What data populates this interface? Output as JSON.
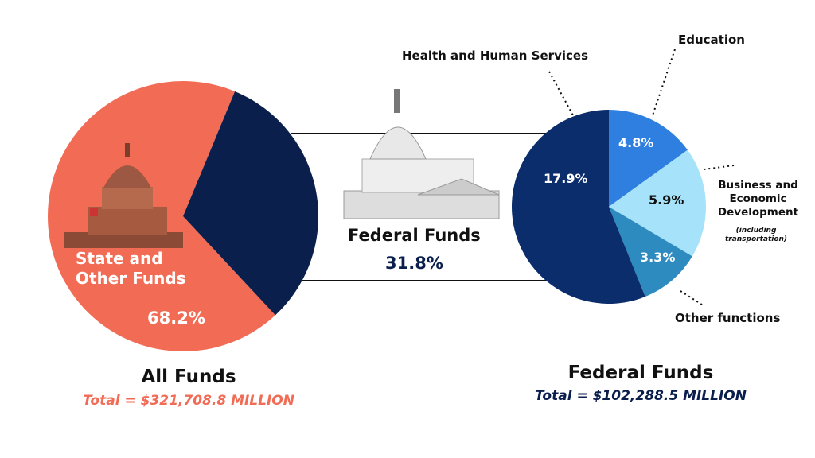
{
  "chart_data": [
    {
      "type": "pie",
      "title": "All Funds",
      "subtitle": "Total = $321,708.8 MILLION",
      "categories": [
        "State and Other Funds",
        "Federal Funds"
      ],
      "values": [
        68.2,
        31.8
      ],
      "value_labels": [
        "68.2%",
        "31.8%"
      ],
      "colors": [
        "#f26b55",
        "#0b1f4d"
      ]
    },
    {
      "type": "pie",
      "title": "Federal Funds",
      "subtitle": "Total = $102,288.5 MILLION",
      "categories": [
        "Education",
        "Business and Economic Development",
        "Other functions",
        "Health and Human Services"
      ],
      "values": [
        4.8,
        5.9,
        3.3,
        17.9
      ],
      "value_labels": [
        "4.8%",
        "5.9%",
        "3.3%",
        "17.9%"
      ],
      "colors": [
        "#2f7fe0",
        "#a6e3fb",
        "#2e8bbf",
        "#0b2d6b"
      ],
      "annotations": [
        "(including transportation)"
      ]
    }
  ]
}
